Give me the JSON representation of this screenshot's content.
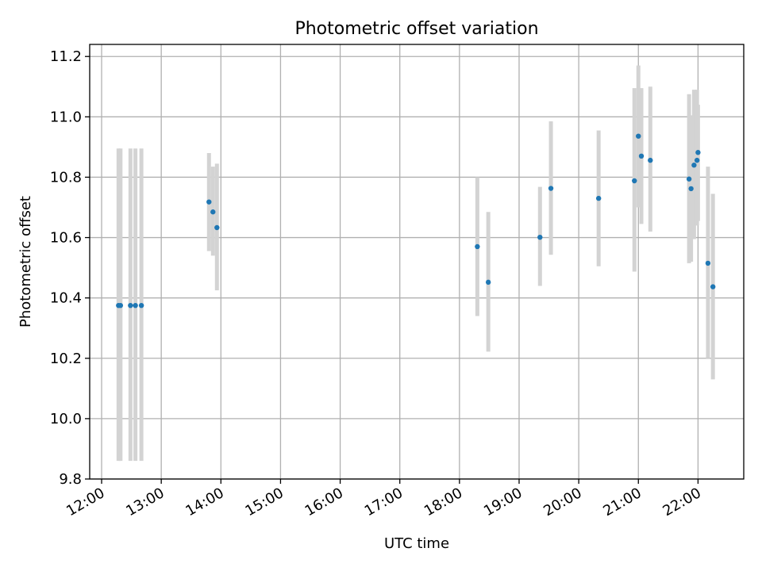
{
  "chart_data": {
    "type": "scatter",
    "title": "Photometric offset variation",
    "xlabel": "UTC time",
    "ylabel": "Photometric offset",
    "grid": true,
    "legend": false,
    "xlim": [
      "11:48",
      "22:46"
    ],
    "ylim": [
      9.8,
      11.24
    ],
    "x_ticks": [
      "12:00",
      "13:00",
      "14:00",
      "15:00",
      "16:00",
      "17:00",
      "18:00",
      "19:00",
      "20:00",
      "21:00",
      "22:00"
    ],
    "y_ticks": [
      "9.8",
      "10.0",
      "10.2",
      "10.4",
      "10.6",
      "10.8",
      "11.0",
      "11.2"
    ],
    "colors": {
      "point": "#1f77b4",
      "error_bar": "#d3d3d3",
      "grid": "#b0b0b0"
    },
    "series": [
      {
        "points": [
          {
            "x": "12:17",
            "y": 10.375,
            "err_low": 9.86,
            "err_high": 10.895
          },
          {
            "x": "12:19",
            "y": 10.375,
            "err_low": 9.86,
            "err_high": 10.895
          },
          {
            "x": "12:29",
            "y": 10.375,
            "err_low": 9.86,
            "err_high": 10.895
          },
          {
            "x": "12:34",
            "y": 10.375,
            "err_low": 9.86,
            "err_high": 10.895
          },
          {
            "x": "12:40",
            "y": 10.375,
            "err_low": 9.86,
            "err_high": 10.895
          },
          {
            "x": "13:48",
            "y": 10.718,
            "err_low": 10.555,
            "err_high": 10.88
          },
          {
            "x": "13:52",
            "y": 10.685,
            "err_low": 10.54,
            "err_high": 10.835
          },
          {
            "x": "13:56",
            "y": 10.633,
            "err_low": 10.425,
            "err_high": 10.845
          },
          {
            "x": "18:18",
            "y": 10.57,
            "err_low": 10.34,
            "err_high": 10.8
          },
          {
            "x": "18:29",
            "y": 10.452,
            "err_low": 10.222,
            "err_high": 10.685
          },
          {
            "x": "19:21",
            "y": 10.601,
            "err_low": 10.44,
            "err_high": 10.768
          },
          {
            "x": "19:32",
            "y": 10.763,
            "err_low": 10.543,
            "err_high": 10.985
          },
          {
            "x": "20:20",
            "y": 10.73,
            "err_low": 10.505,
            "err_high": 10.955
          },
          {
            "x": "20:56",
            "y": 10.788,
            "err_low": 10.487,
            "err_high": 11.095
          },
          {
            "x": "21:00",
            "y": 10.936,
            "err_low": 10.7,
            "err_high": 11.17
          },
          {
            "x": "21:03",
            "y": 10.87,
            "err_low": 10.645,
            "err_high": 11.095
          },
          {
            "x": "21:12",
            "y": 10.856,
            "err_low": 10.62,
            "err_high": 11.1
          },
          {
            "x": "21:51",
            "y": 10.794,
            "err_low": 10.515,
            "err_high": 11.075
          },
          {
            "x": "21:53",
            "y": 10.762,
            "err_low": 10.52,
            "err_high": 11.005
          },
          {
            "x": "21:56",
            "y": 10.84,
            "err_low": 10.595,
            "err_high": 11.09
          },
          {
            "x": "21:59",
            "y": 10.856,
            "err_low": 10.64,
            "err_high": 11.09
          },
          {
            "x": "22:00",
            "y": 10.882,
            "err_low": 10.655,
            "err_high": 11.04
          },
          {
            "x": "22:10",
            "y": 10.515,
            "err_low": 10.2,
            "err_high": 10.835
          },
          {
            "x": "22:15",
            "y": 10.437,
            "err_low": 10.13,
            "err_high": 10.745
          }
        ]
      }
    ]
  }
}
